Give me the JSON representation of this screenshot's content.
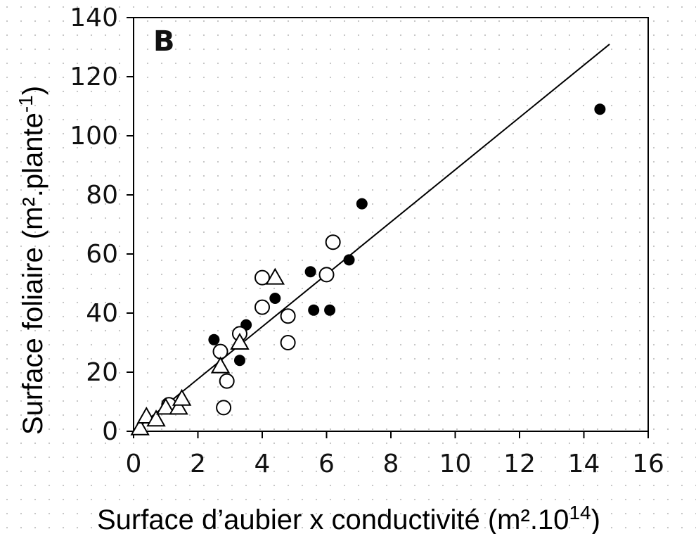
{
  "chart_data": {
    "type": "scatter",
    "panel_label": "B",
    "xlabel": "Surface d’aubier x conductivité (m².10",
    "xlabel_sup": "14",
    "xlabel_end": ")",
    "ylabel": "Surface foliaire (m².plante",
    "ylabel_sup": "-1",
    "ylabel_end": ")",
    "xlim": [
      0,
      16
    ],
    "ylim": [
      0,
      140
    ],
    "x_ticks": [
      0,
      2,
      4,
      6,
      8,
      10,
      12,
      14,
      16
    ],
    "y_ticks": [
      0,
      20,
      40,
      60,
      80,
      100,
      120,
      140
    ],
    "x_tick_labels": [
      "0",
      "2",
      "4",
      "6",
      "8",
      "10",
      "12",
      "14",
      "16"
    ],
    "y_tick_labels": [
      "0",
      "20",
      "40",
      "60",
      "80",
      "100",
      "120",
      "140"
    ],
    "grid": false,
    "series": [
      {
        "marker": "filled-circle",
        "x": [
          2.5,
          3.3,
          3.5,
          4.4,
          5.5,
          5.6,
          6.1,
          6.7,
          7.1,
          14.5
        ],
        "y": [
          31,
          24,
          36,
          45,
          54,
          41,
          41,
          58,
          77,
          109
        ]
      },
      {
        "marker": "open-circle",
        "x": [
          2.7,
          2.9,
          2.8,
          3.3,
          4.0,
          4.0,
          4.8,
          4.8,
          6.0,
          6.2,
          1.1
        ],
        "y": [
          27,
          17,
          8,
          33,
          42,
          52,
          39,
          30,
          53,
          64,
          9
        ]
      },
      {
        "marker": "open-triangle",
        "x": [
          0.2,
          0.4,
          0.7,
          1.0,
          1.4,
          1.5,
          2.7,
          3.3,
          4.4
        ],
        "y": [
          1,
          5,
          4,
          8,
          8,
          11,
          22,
          30,
          52
        ]
      }
    ],
    "fit_line": {
      "x": [
        0,
        14.8
      ],
      "y": [
        0,
        131
      ]
    }
  }
}
